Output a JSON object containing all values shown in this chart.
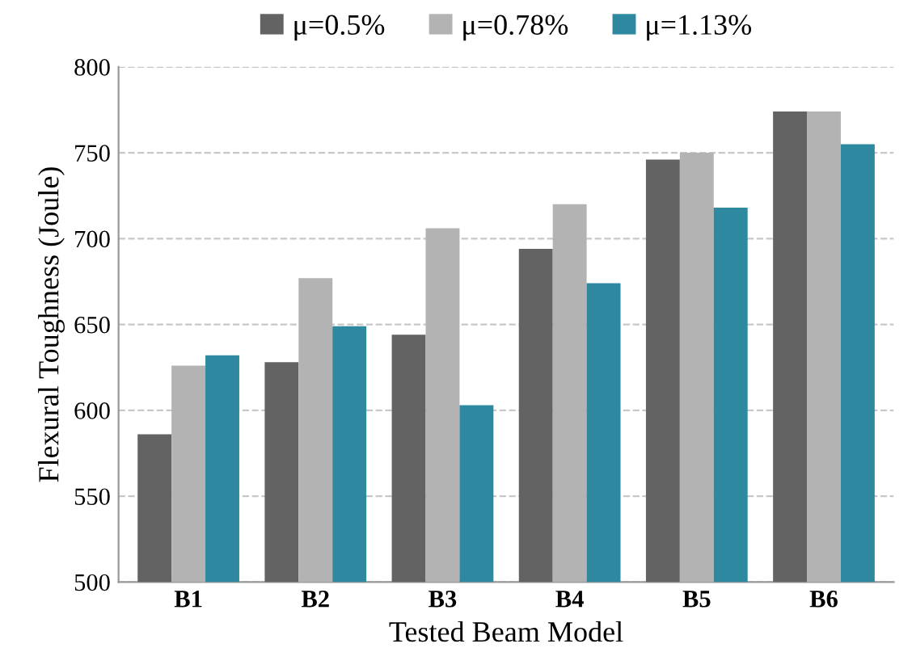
{
  "chart_data": {
    "type": "bar",
    "xlabel": "Tested Beam Model",
    "ylabel": "Flexural Toughness (Joule)",
    "categories": [
      "B1",
      "B2",
      "B3",
      "B4",
      "B5",
      "B6"
    ],
    "series": [
      {
        "name": "μ=0.5%",
        "color": "#636363",
        "values": [
          586,
          628,
          644,
          694,
          746,
          774
        ]
      },
      {
        "name": "μ=0.78%",
        "color": "#b3b3b3",
        "values": [
          626,
          677,
          706,
          720,
          750,
          774
        ]
      },
      {
        "name": "μ=1.13%",
        "color": "#2e89a0",
        "values": [
          632,
          649,
          603,
          674,
          718,
          755
        ]
      }
    ],
    "ylim": [
      500,
      800
    ],
    "yticks": [
      500,
      550,
      600,
      650,
      700,
      750,
      800
    ],
    "grid": "y",
    "legend": "top"
  }
}
